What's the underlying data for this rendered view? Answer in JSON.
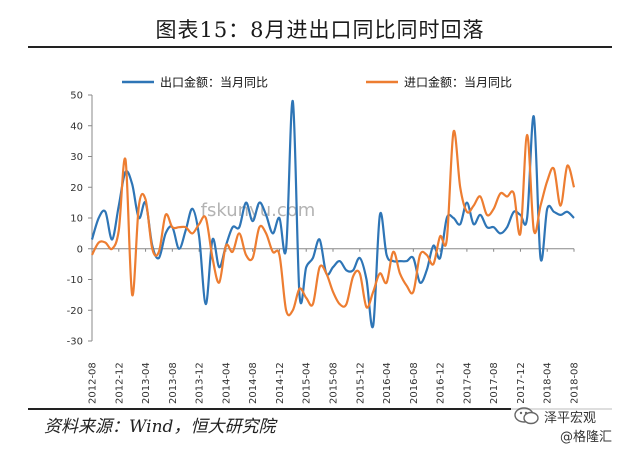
{
  "header": {
    "title": "图表15：8月进出口同比同时回落"
  },
  "footer": {
    "source": "资料来源：Wind，恒大研究院"
  },
  "brand": {
    "line1": "泽平宏观",
    "line2": "@格隆汇"
  },
  "watermark": "fskunyu.com",
  "colors": {
    "export": "#2E75B6",
    "import": "#ED7D31",
    "axis": "#888888"
  },
  "chart_data": {
    "type": "line",
    "title": "",
    "xlabel": "",
    "ylabel": "",
    "ylim": [
      -30,
      50
    ],
    "yticks": [
      -30,
      -20,
      -10,
      0,
      10,
      20,
      30,
      40,
      50
    ],
    "grid": false,
    "legend_position": "top",
    "x": [
      "2012-08",
      "2012-09",
      "2012-10",
      "2012-11",
      "2012-12",
      "2013-01",
      "2013-02",
      "2013-03",
      "2013-04",
      "2013-05",
      "2013-06",
      "2013-07",
      "2013-08",
      "2013-09",
      "2013-10",
      "2013-11",
      "2013-12",
      "2014-01",
      "2014-02",
      "2014-03",
      "2014-04",
      "2014-05",
      "2014-06",
      "2014-07",
      "2014-08",
      "2014-09",
      "2014-10",
      "2014-11",
      "2014-12",
      "2015-01",
      "2015-02",
      "2015-03",
      "2015-04",
      "2015-05",
      "2015-06",
      "2015-07",
      "2015-08",
      "2015-09",
      "2015-10",
      "2015-11",
      "2015-12",
      "2016-01",
      "2016-02",
      "2016-03",
      "2016-04",
      "2016-05",
      "2016-06",
      "2016-07",
      "2016-08",
      "2016-09",
      "2016-10",
      "2016-11",
      "2016-12",
      "2017-01",
      "2017-02",
      "2017-03",
      "2017-04",
      "2017-05",
      "2017-06",
      "2017-07",
      "2017-08",
      "2017-09",
      "2017-10",
      "2017-11",
      "2017-12",
      "2018-01",
      "2018-02",
      "2018-03",
      "2018-04",
      "2018-05",
      "2018-06",
      "2018-07",
      "2018-08"
    ],
    "xtick_labels": [
      "2012-08",
      "2012-12",
      "2013-04",
      "2013-08",
      "2013-12",
      "2014-04",
      "2014-08",
      "2014-12",
      "2015-04",
      "2015-08",
      "2015-12",
      "2016-04",
      "2016-08",
      "2016-12",
      "2017-04",
      "2017-08",
      "2017-12",
      "2018-04",
      "2018-08"
    ],
    "series": [
      {
        "name": "出口金额：当月同比",
        "values": [
          3,
          10,
          12,
          3,
          14,
          25,
          21,
          10,
          15,
          1,
          -3,
          5,
          7,
          0,
          6,
          13,
          4,
          -18,
          3,
          -6,
          1,
          7,
          7,
          15,
          9,
          15,
          11,
          5,
          10,
          0,
          48,
          -15,
          -6,
          -3,
          3,
          -8,
          -6,
          -4,
          -7,
          -7,
          -3,
          -10,
          -25,
          11,
          -2,
          -4,
          -4,
          -4,
          -3,
          -11,
          -7,
          1,
          -3,
          10,
          10,
          8,
          15,
          8,
          11,
          7,
          7,
          5,
          7,
          12,
          11,
          10,
          43,
          -3,
          13,
          12,
          11,
          12,
          10
        ]
      },
      {
        "name": "进口金额：当月同比",
        "values": [
          -2,
          2,
          2,
          0,
          6,
          29,
          -15,
          14,
          16,
          0,
          -1,
          11,
          7,
          7,
          7,
          5,
          8,
          10,
          -3,
          -11,
          1,
          -1,
          5,
          -2,
          -3,
          7,
          5,
          -1,
          -2,
          -20,
          -20,
          -13,
          -16,
          -18,
          -6,
          -8,
          -14,
          -18,
          -18,
          -9,
          -8,
          -19,
          -14,
          -8,
          -11,
          -1,
          -8,
          -12,
          -14,
          -2,
          -2,
          -5,
          4,
          3,
          38,
          20,
          12,
          14,
          17,
          11,
          13,
          18,
          17,
          18,
          5,
          37,
          6,
          14,
          22,
          26,
          14,
          27,
          20
        ]
      }
    ]
  }
}
